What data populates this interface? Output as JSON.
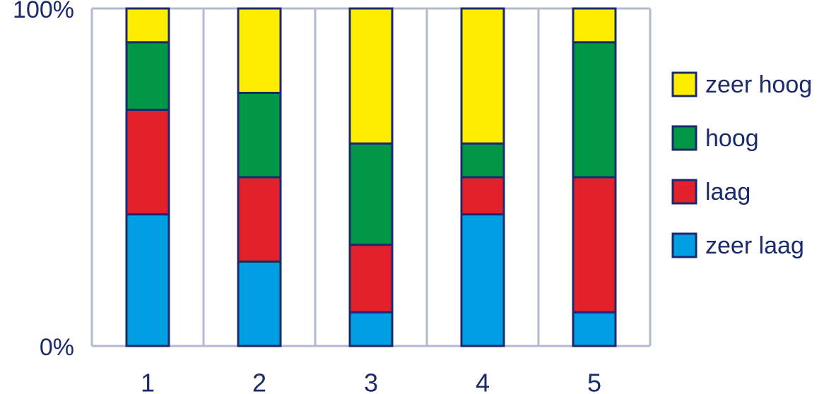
{
  "chart_data": {
    "type": "stacked_bar",
    "categories": [
      "1",
      "2",
      "3",
      "4",
      "5"
    ],
    "series": [
      {
        "name": "zeer laag",
        "color": "#009fe3",
        "values": [
          39,
          25,
          10,
          39,
          10
        ]
      },
      {
        "name": "laag",
        "color": "#e3212b",
        "values": [
          31,
          25,
          20,
          11,
          40
        ]
      },
      {
        "name": "hoog",
        "color": "#009846",
        "values": [
          20,
          25,
          30,
          10,
          40
        ]
      },
      {
        "name": "zeer hoog",
        "color": "#ffed00",
        "values": [
          10,
          25,
          40,
          40,
          10
        ]
      }
    ],
    "ylim": [
      0,
      100
    ],
    "yticks": [
      {
        "value": 0,
        "label": "0%"
      },
      {
        "value": 100,
        "label": "100%"
      }
    ],
    "grid": true,
    "legend": "right"
  }
}
